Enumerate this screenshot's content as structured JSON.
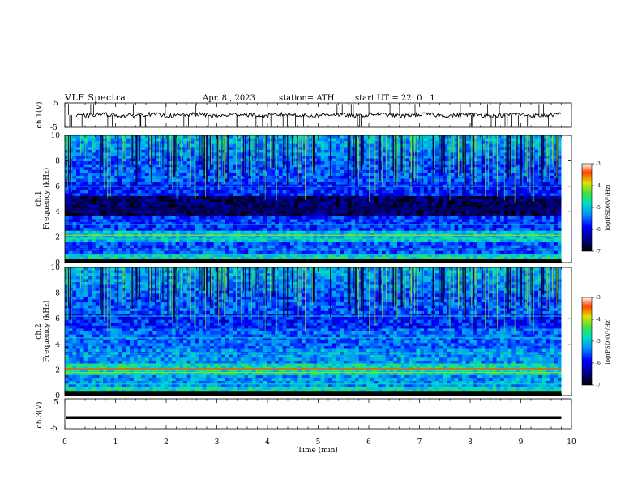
{
  "header": {
    "title": "VLF Spectra",
    "date": "Apr. 8 , 2023",
    "station": "station= ATH",
    "start": "start UT = 22: 0 : 1"
  },
  "chart_data": [
    {
      "type": "line",
      "panel": "ch1-waveform",
      "ylabel": "ch.1(V)",
      "yticks": [
        "5",
        "-5"
      ],
      "ylim": [
        -5,
        5
      ],
      "xlim": [
        0,
        10
      ],
      "trace_end_min": 9.8
    },
    {
      "type": "heatmap",
      "panel": "ch1-spectrogram",
      "ylabel": "ch.1 Frequency (kHz)",
      "yticks": [
        "0",
        "2",
        "4",
        "6",
        "8",
        "10"
      ],
      "ylim": [
        0,
        10
      ],
      "xlim": [
        0,
        10
      ],
      "data_end_min": 9.8
    },
    {
      "type": "heatmap",
      "panel": "ch2-spectrogram",
      "ylabel": "ch.2 Frequency (kHz)",
      "yticks": [
        "0",
        "2",
        "4",
        "6",
        "8",
        "10"
      ],
      "ylim": [
        0,
        10
      ],
      "xlim": [
        0,
        10
      ],
      "data_end_min": 9.8
    },
    {
      "type": "line",
      "panel": "ch3-waveform",
      "ylabel": "ch.3(V)",
      "yticks": [
        "5",
        "-5"
      ],
      "ylim": [
        -5,
        5
      ],
      "xlim": [
        0,
        10
      ],
      "trace_value": -1.3,
      "xlabel": "Time (min)",
      "xticks": [
        "0",
        "1",
        "2",
        "3",
        "4",
        "5",
        "6",
        "7",
        "8",
        "9",
        "10"
      ]
    }
  ],
  "colorbars": [
    {
      "label": "log(PSD)(V²/Hz)",
      "ticks": [
        "-3",
        "-4",
        "-5",
        "-6",
        "-7"
      ],
      "range": [
        -7,
        -3
      ]
    },
    {
      "label": "log(PSD)(V²/Hz)",
      "ticks": [
        "-3",
        "-4",
        "-5",
        "-6",
        "-7"
      ],
      "range": [
        -7,
        -3
      ]
    }
  ],
  "colors": {
    "colormap": [
      "#000000",
      "#00007a",
      "#0000ff",
      "#0090ff",
      "#00e0c0",
      "#40e040",
      "#e0e000",
      "#ff4000",
      "#ffffff"
    ],
    "trace": "#000000"
  }
}
